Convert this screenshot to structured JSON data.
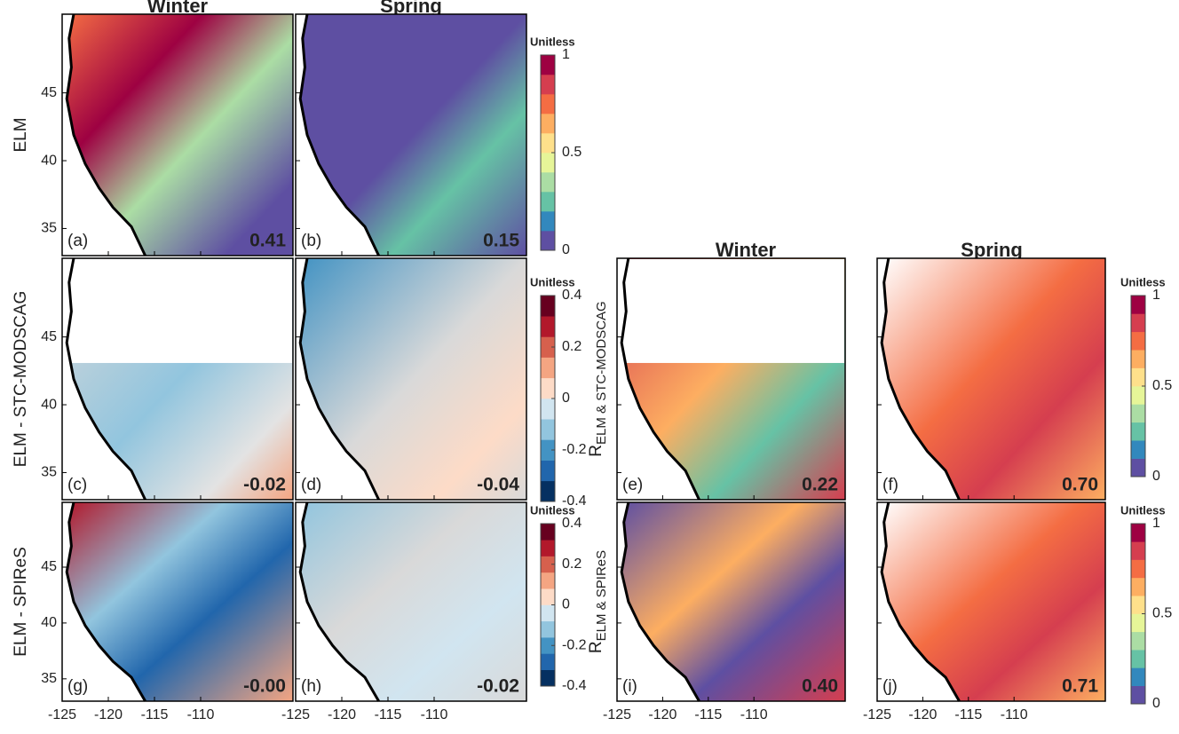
{
  "left_columns": [
    "Winter",
    "Spring"
  ],
  "right_columns": [
    "Winter",
    "Spring"
  ],
  "row_labels": [
    "ELM",
    "ELM - STC-MODSCAG",
    "ELM - SPIReS"
  ],
  "right_row_labels": [
    {
      "main": "R",
      "sub": "ELM & STC-MODSCAG"
    },
    {
      "main": "R",
      "sub": "ELM & SPIReS"
    }
  ],
  "panels": [
    {
      "letter": "(a)",
      "stat": 0.41
    },
    {
      "letter": "(b)",
      "stat": 0.15
    },
    {
      "letter": "(c)",
      "stat": -0.02
    },
    {
      "letter": "(d)",
      "stat": -0.04
    },
    {
      "letter": "(e)",
      "stat": 0.22
    },
    {
      "letter": "(f)",
      "stat": {
        "value": 0.7,
        "label": "0.70"
      }
    },
    {
      "letter": "(g)",
      "stat": {
        "value": 0,
        "label": "-0.00"
      }
    },
    {
      "letter": "(h)",
      "stat": -0.02
    },
    {
      "letter": "(i)",
      "stat": {
        "value": 0.4,
        "label": "0.40"
      }
    },
    {
      "letter": "(j)",
      "stat": 0.71
    }
  ],
  "colorbars": [
    {
      "unit": "Unitless",
      "lim": [
        0,
        1
      ],
      "ticks": [
        0,
        0.5,
        1
      ],
      "colors": [
        "#5e4fa2",
        "#3288bd",
        "#66c2a5",
        "#abdda4",
        "#e6f598",
        "#fee08b",
        "#fdae61",
        "#f46d43",
        "#d53e4f",
        "#9e0142"
      ]
    },
    {
      "unit": "Unitless",
      "lim": [
        -0.4,
        0.4
      ],
      "ticks": [
        -0.4,
        -0.2,
        0,
        0.2,
        0.4
      ],
      "colors": [
        "#053061",
        "#2166ac",
        "#4393c3",
        "#92c5de",
        "#d1e5f0",
        "#fddbc7",
        "#f4a582",
        "#d6604d",
        "#b2182b",
        "#67001f"
      ]
    },
    {
      "unit": "Unitless",
      "lim": [
        -0.4,
        0.4
      ],
      "ticks": [
        -0.4,
        -0.2,
        0,
        0.2,
        0.4
      ],
      "colors": [
        "#053061",
        "#2166ac",
        "#4393c3",
        "#92c5de",
        "#d1e5f0",
        "#fddbc7",
        "#f4a582",
        "#d6604d",
        "#b2182b",
        "#67001f"
      ]
    },
    {
      "unit": "Unitless",
      "lim": [
        0,
        1
      ],
      "ticks": [
        0,
        0.5,
        1
      ],
      "colors": [
        "#5e4fa2",
        "#3288bd",
        "#66c2a5",
        "#abdda4",
        "#e6f598",
        "#fee08b",
        "#fdae61",
        "#f46d43",
        "#d53e4f",
        "#9e0142"
      ]
    },
    {
      "unit": "Unitless",
      "lim": [
        0,
        1
      ],
      "ticks": [
        0,
        0.5,
        1
      ],
      "colors": [
        "#5e4fa2",
        "#3288bd",
        "#66c2a5",
        "#abdda4",
        "#e6f598",
        "#fee08b",
        "#fdae61",
        "#f46d43",
        "#d53e4f",
        "#9e0142"
      ]
    }
  ],
  "lat_lim": [
    33,
    50.8
  ],
  "lat_ticks": [
    35,
    40,
    45
  ],
  "lon_lim": [
    -125,
    -100
  ],
  "lon_ticks": [
    -125,
    -120,
    -115,
    -110
  ]
}
